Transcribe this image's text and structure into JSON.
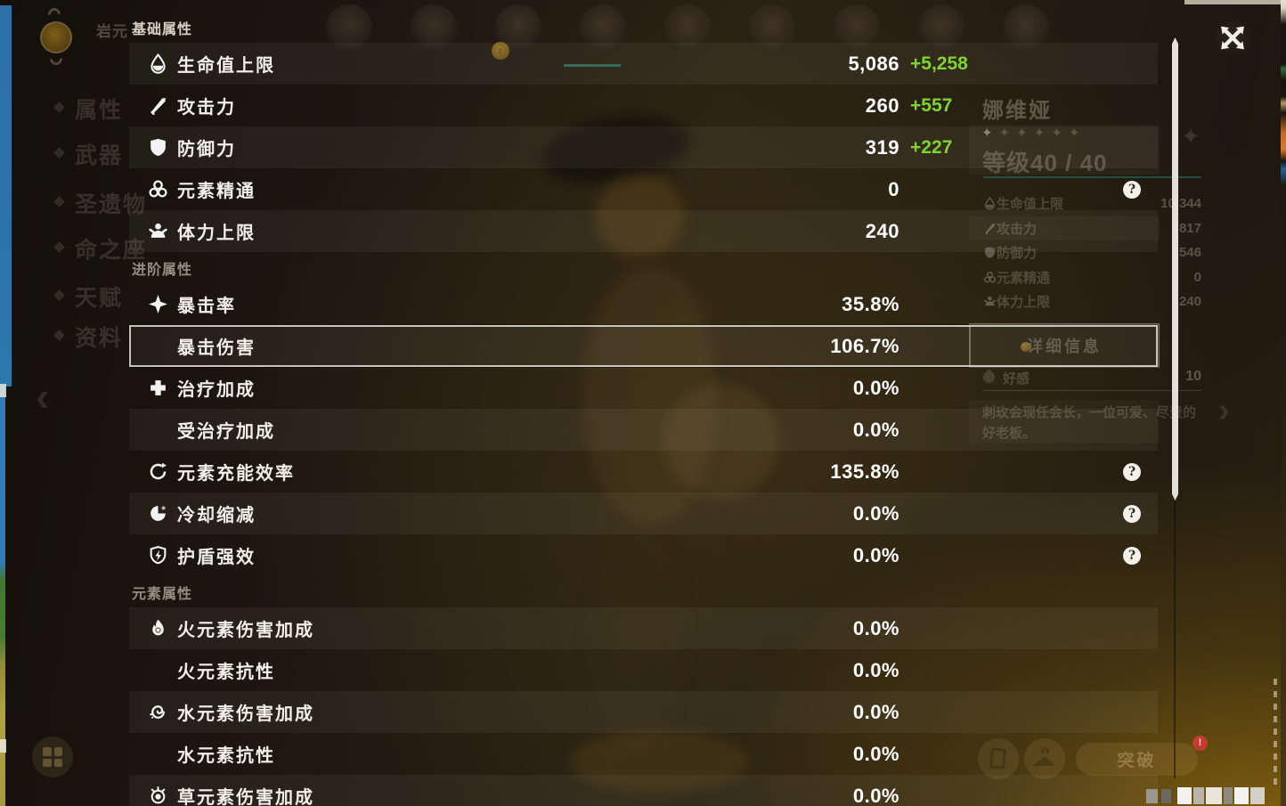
{
  "colors": {
    "bonus_green": "#7FD42F",
    "value_white": "#FFFFFF",
    "highlight_border": "#E2DFD6",
    "scene_blue": "#2E7CB8",
    "scene_green": "#4A7C2E",
    "scene_olive": "#B0A23E",
    "notification_red": "#C23B2E",
    "friendship_teal": "#28AAA0"
  },
  "stats_panel": {
    "sections": [
      {
        "title": "基础属性",
        "rows": [
          {
            "icon": "hp-icon",
            "label": "生命值上限",
            "value": "5,086",
            "bonus": "+5,258"
          },
          {
            "icon": "atk-icon",
            "label": "攻击力",
            "value": "260",
            "bonus": "+557"
          },
          {
            "icon": "def-icon",
            "label": "防御力",
            "value": "319",
            "bonus": "+227"
          },
          {
            "icon": "elemental-mastery-icon",
            "label": "元素精通",
            "value": "0",
            "help": true
          },
          {
            "icon": "stamina-icon",
            "label": "体力上限",
            "value": "240"
          }
        ]
      },
      {
        "title": "进阶属性",
        "rows": [
          {
            "icon": "crit-rate-icon",
            "label": "暴击率",
            "value": "35.8%"
          },
          {
            "icon": null,
            "label": "暴击伤害",
            "value": "106.7%",
            "selected": true
          },
          {
            "icon": "healing-bonus-icon",
            "label": "治疗加成",
            "value": "0.0%"
          },
          {
            "icon": null,
            "label": "受治疗加成",
            "value": "0.0%"
          },
          {
            "icon": "energy-recharge-icon",
            "label": "元素充能效率",
            "value": "135.8%",
            "help": true
          },
          {
            "icon": "cooldown-icon",
            "label": "冷却缩减",
            "value": "0.0%",
            "help": true
          },
          {
            "icon": "shield-strength-icon",
            "label": "护盾强效",
            "value": "0.0%",
            "help": true
          }
        ]
      },
      {
        "title": "元素属性",
        "rows": [
          {
            "icon": "pyro-icon",
            "label": "火元素伤害加成",
            "value": "0.0%"
          },
          {
            "icon": null,
            "label": "火元素抗性",
            "value": "0.0%"
          },
          {
            "icon": "hydro-icon",
            "label": "水元素伤害加成",
            "value": "0.0%"
          },
          {
            "icon": null,
            "label": "水元素抗性",
            "value": "0.0%"
          },
          {
            "icon": "dendro-icon",
            "label": "草元素伤害加成",
            "value": "0.0%"
          }
        ]
      }
    ]
  },
  "background": {
    "skill_label_fragment": "岩元",
    "sidebar_items": [
      "属性",
      "武器",
      "圣遗物",
      "命之座",
      "天赋",
      "资料"
    ],
    "party_avatar_count": 9,
    "character_card": {
      "name": "娜维娅",
      "star_glyph": "✦",
      "star_count": 6,
      "level_label": "等级40 / 40",
      "stats": [
        {
          "icon": "hp-icon",
          "label": "生命值上限",
          "value": "10,344"
        },
        {
          "icon": "atk-icon",
          "label": "攻击力",
          "value": "817"
        },
        {
          "icon": "def-icon",
          "label": "防御力",
          "value": "546"
        },
        {
          "icon": "elemental-mastery-icon",
          "label": "元素精通",
          "value": "0"
        },
        {
          "icon": "stamina-icon",
          "label": "体力上限",
          "value": "240"
        }
      ],
      "details_button_label": "详细信息",
      "friendship_label": "好感",
      "friendship_value": "10",
      "description": "刺玫会现任会长，一位可爱、尽责的好老板。"
    },
    "ascend_button_label": "突破",
    "notification_mark": "!"
  }
}
